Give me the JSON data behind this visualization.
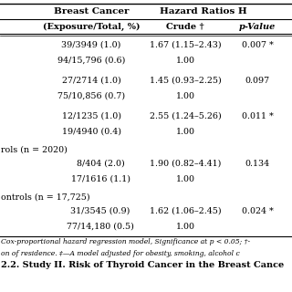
{
  "title1": "Breast Cancer",
  "title2": "Hazard Ratios H",
  "header": [
    "(Exposure/Total, %)",
    "Crude †",
    "p-Value"
  ],
  "rows": [
    {
      "col0": "39/3949 (1.0)",
      "col1": "1.67 (1.15–2.43)",
      "col2": "0.007 *",
      "indent": false,
      "group": false
    },
    {
      "col0": "94/15,796 (0.6)",
      "col1": "1.00",
      "col2": "",
      "indent": false,
      "group": false
    },
    {
      "col0": "27/2714 (1.0)",
      "col1": "1.45 (0.93–2.25)",
      "col2": "0.097",
      "indent": false,
      "group": false
    },
    {
      "col0": "75/10,856 (0.7)",
      "col1": "1.00",
      "col2": "",
      "indent": false,
      "group": false
    },
    {
      "col0": "12/1235 (1.0)",
      "col1": "2.55 (1.24–5.26)",
      "col2": "0.011 *",
      "indent": false,
      "group": false
    },
    {
      "col0": "19/4940 (0.4)",
      "col1": "1.00",
      "col2": "",
      "indent": false,
      "group": false
    },
    {
      "col0": "rols (n = 2020)",
      "col1": "",
      "col2": "",
      "indent": false,
      "group": true
    },
    {
      "col0": "8/404 (2.0)",
      "col1": "1.90 (0.82–4.41)",
      "col2": "0.134",
      "indent": true,
      "group": false
    },
    {
      "col0": "17/1616 (1.1)",
      "col1": "1.00",
      "col2": "",
      "indent": true,
      "group": false
    },
    {
      "col0": "ontrols (n = 17,725)",
      "col1": "",
      "col2": "",
      "indent": false,
      "group": true
    },
    {
      "col0": "31/3545 (0.9)",
      "col1": "1.62 (1.06–2.45)",
      "col2": "0.024 *",
      "indent": true,
      "group": false
    },
    {
      "col0": "77/14,180 (0.5)",
      "col1": "1.00",
      "col2": "",
      "indent": true,
      "group": false
    }
  ],
  "footnote1": "Cox-proportional hazard regression model, Significance at p < 0.05; †-",
  "footnote2": "on of residence. ‡—A model adjusted for obesity, smoking, alcohol c",
  "footer": "2.2. Study II. Risk of Thyroid Cancer in the Breast Cance",
  "bg_color": "#ffffff"
}
